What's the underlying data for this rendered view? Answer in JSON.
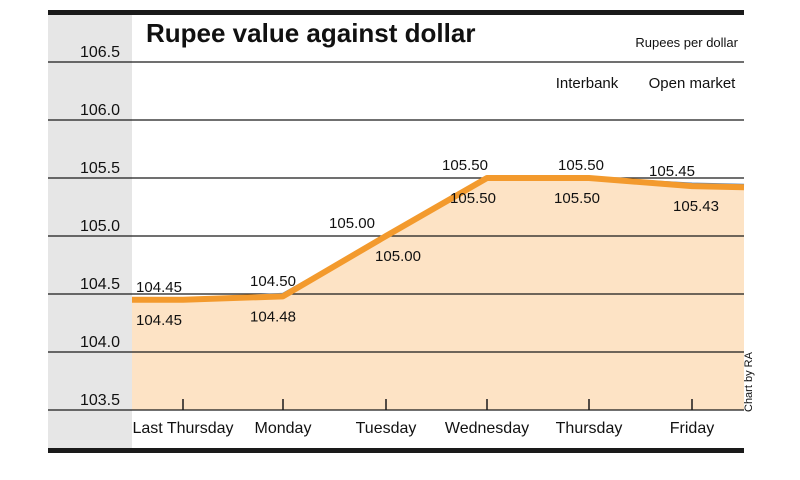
{
  "chart_data": {
    "type": "line",
    "title": "Rupee value against dollar",
    "ylabel": "Rupees per dollar",
    "ylim": [
      103.5,
      106.5
    ],
    "yticks": [
      "106.5",
      "106.0",
      "105.5",
      "105.0",
      "104.5",
      "104.0",
      "103.5"
    ],
    "categories": [
      "Last Thursday",
      "Monday",
      "Tuesday",
      "Wednesday",
      "Thursday",
      "Friday"
    ],
    "series": [
      {
        "name": "Interbank",
        "values": [
          104.45,
          104.5,
          105.0,
          105.5,
          105.5,
          105.45
        ],
        "labels": [
          "104.45",
          "104.50",
          "105.00",
          "105.50",
          "105.50",
          "105.45"
        ]
      },
      {
        "name": "Open market",
        "values": [
          104.45,
          104.48,
          105.0,
          105.5,
          105.5,
          105.43
        ],
        "labels": [
          "104.45",
          "104.48",
          "105.00",
          "105.50",
          "105.50",
          "105.43"
        ]
      }
    ],
    "credit": "Chart by RA",
    "colors": {
      "interbank": "#5b86b8",
      "open_market": "#f39a2d",
      "fill": "#fde3c5",
      "axis_band": "#e6e6e6"
    }
  }
}
